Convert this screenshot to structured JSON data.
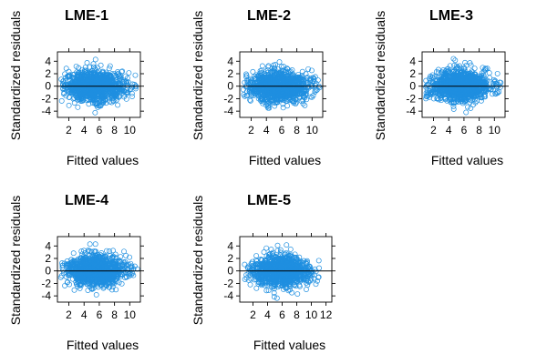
{
  "colors": {
    "points": "#1f8fe0",
    "zero_line": "#000000",
    "axis": "#000000",
    "text": "#000000"
  },
  "chart_data": [
    {
      "type": "scatter",
      "title": "LME-1",
      "xlabel": "Fitted values",
      "ylabel": "Standardized residuals",
      "xlim": [
        0.5,
        11.4
      ],
      "ylim": [
        -5.0,
        5.5
      ],
      "xticks": [
        2,
        4,
        6,
        8,
        10
      ],
      "yticks": [
        -4,
        -2,
        0,
        2,
        4
      ],
      "reference_line_y": 0,
      "point_cloud": {
        "x_range": [
          0.9,
          11.0
        ],
        "y_range": [
          -4.3,
          4.4
        ],
        "center_x": 5.5
      }
    },
    {
      "type": "scatter",
      "title": "LME-2",
      "xlabel": "Fitted values",
      "ylabel": "Standardized residuals",
      "xlim": [
        0.5,
        11.4
      ],
      "ylim": [
        -5.0,
        5.5
      ],
      "xticks": [
        2,
        4,
        6,
        8,
        10
      ],
      "yticks": [
        -4,
        -2,
        0,
        2,
        4
      ],
      "reference_line_y": 0,
      "point_cloud": {
        "x_range": [
          0.9,
          11.0
        ],
        "y_range": [
          -4.3,
          4.3
        ],
        "center_x": 5.5
      }
    },
    {
      "type": "scatter",
      "title": "LME-3",
      "xlabel": "Fitted values",
      "ylabel": "Standardized residuals",
      "xlim": [
        0.5,
        11.4
      ],
      "ylim": [
        -5.0,
        5.5
      ],
      "xticks": [
        2,
        4,
        6,
        8,
        10
      ],
      "yticks": [
        -4,
        -2,
        0,
        2,
        4
      ],
      "reference_line_y": 0,
      "point_cloud": {
        "x_range": [
          0.9,
          11.0
        ],
        "y_range": [
          -4.2,
          4.4
        ],
        "center_x": 5.5
      }
    },
    {
      "type": "scatter",
      "title": "LME-4",
      "xlabel": "Fitted values",
      "ylabel": "Standardized residuals",
      "xlim": [
        0.5,
        11.4
      ],
      "ylim": [
        -5.0,
        5.5
      ],
      "xticks": [
        2,
        4,
        6,
        8,
        10
      ],
      "yticks": [
        -4,
        -2,
        0,
        2,
        4
      ],
      "reference_line_y": 0,
      "point_cloud": {
        "x_range": [
          0.9,
          11.0
        ],
        "y_range": [
          -4.3,
          4.3
        ],
        "center_x": 5.5
      }
    },
    {
      "type": "scatter",
      "title": "LME-5",
      "xlabel": "Fitted values",
      "ylabel": "Standardized residuals",
      "xlim": [
        0.2,
        12.8
      ],
      "ylim": [
        -5.0,
        5.5
      ],
      "xticks": [
        2,
        4,
        6,
        8,
        10,
        12
      ],
      "yticks": [
        -4,
        -2,
        0,
        2,
        4
      ],
      "reference_line_y": 0,
      "point_cloud": {
        "x_range": [
          0.8,
          11.5
        ],
        "y_range": [
          -4.5,
          4.9
        ],
        "center_x": 5.8
      }
    }
  ]
}
